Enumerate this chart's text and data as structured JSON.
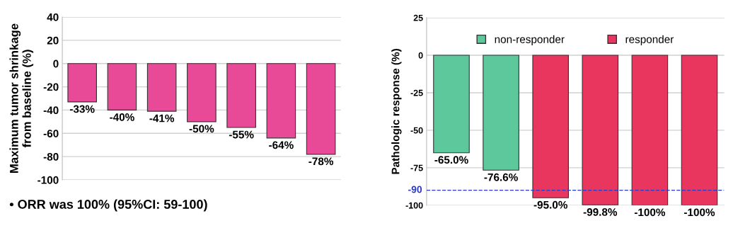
{
  "chart_data": [
    {
      "type": "bar",
      "ylabel": "Maximum tumor shrinkage\nfrom baseline (%)",
      "categories": [
        null,
        null,
        null,
        null,
        null,
        null,
        null
      ],
      "ylim": [
        -100,
        40
      ],
      "yticks": [
        -100,
        -80,
        -60,
        -40,
        -20,
        0,
        20,
        40
      ],
      "grid": "y",
      "legend": false,
      "series": [
        {
          "color": "#e84a98",
          "values": [
            -33,
            -40,
            -41,
            -50,
            -55,
            -64,
            -78
          ],
          "value_labels": [
            "-33%",
            "-40%",
            "-41%",
            "-50%",
            "-55%",
            "-64%",
            "-78%"
          ]
        }
      ],
      "annotations": [
        "• ORR was 100% (95%CI: 59-100)"
      ]
    },
    {
      "type": "bar",
      "ylabel": "Pathologic response (%)",
      "categories": [
        null,
        null,
        null,
        null,
        null,
        null
      ],
      "ylim": [
        -100,
        25
      ],
      "yticks": [
        -100,
        -75,
        -50,
        -25,
        0,
        25
      ],
      "grid": "y",
      "legend": "top",
      "series": [
        {
          "name": "non-responder",
          "color": "#5cc89c",
          "values": [
            -65.0,
            -76.6,
            null,
            null,
            null,
            null
          ],
          "value_labels": [
            "-65.0%",
            "-76.6%",
            null,
            null,
            null,
            null
          ]
        },
        {
          "name": "responder",
          "color": "#e8365f",
          "values": [
            null,
            null,
            -95.0,
            -99.8,
            -100,
            -100
          ],
          "value_labels": [
            null,
            null,
            "-95.0%",
            "-99.8%",
            "-100%",
            "-100%"
          ]
        }
      ],
      "ref_lines": [
        {
          "axis": "y",
          "value": -90,
          "label": "-90",
          "color": "#2b3bc8",
          "line_style": "dashed"
        }
      ]
    }
  ]
}
